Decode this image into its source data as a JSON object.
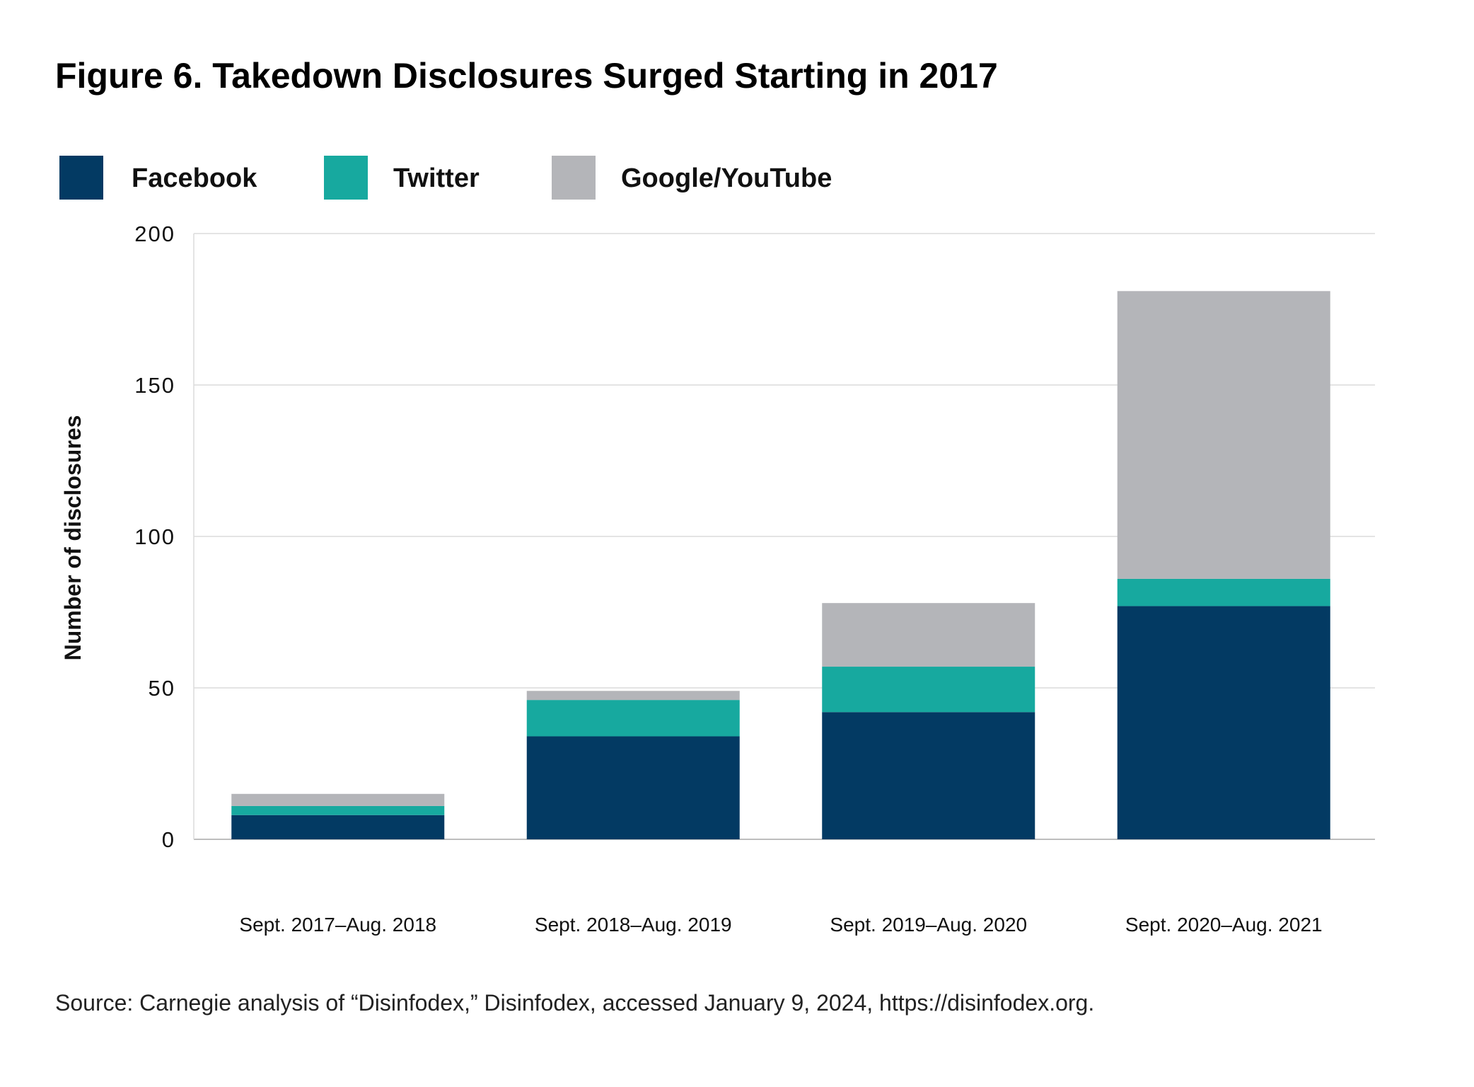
{
  "chart_data": {
    "type": "bar",
    "stacked": true,
    "title": "Figure 6. Takedown Disclosures Surged Starting in 2017",
    "xlabel": "",
    "ylabel": "Number of disclosures",
    "ylim": [
      0,
      200
    ],
    "yticks": [
      0,
      50,
      100,
      150,
      200
    ],
    "ytick_labels": [
      "0",
      "50",
      "100",
      "150",
      "200"
    ],
    "grid": true,
    "legend_position": "top-left",
    "categories": [
      "Sept. 2017–Aug. 2018",
      "Sept. 2018–Aug. 2019",
      "Sept. 2019–Aug. 2020",
      "Sept. 2020–Aug. 2021"
    ],
    "series": [
      {
        "name": "Facebook",
        "color": "#033A63",
        "values": [
          8,
          34,
          42,
          77
        ]
      },
      {
        "name": "Twitter",
        "color": "#17A99F",
        "values": [
          3,
          12,
          15,
          9
        ]
      },
      {
        "name": "Google/YouTube",
        "color": "#B4B5B9",
        "values": [
          4,
          3,
          21,
          95
        ]
      }
    ],
    "source": "Source: Carnegie analysis of “Disinfodex,” Disinfodex, accessed January 9, 2024, https://disinfodex.org."
  }
}
